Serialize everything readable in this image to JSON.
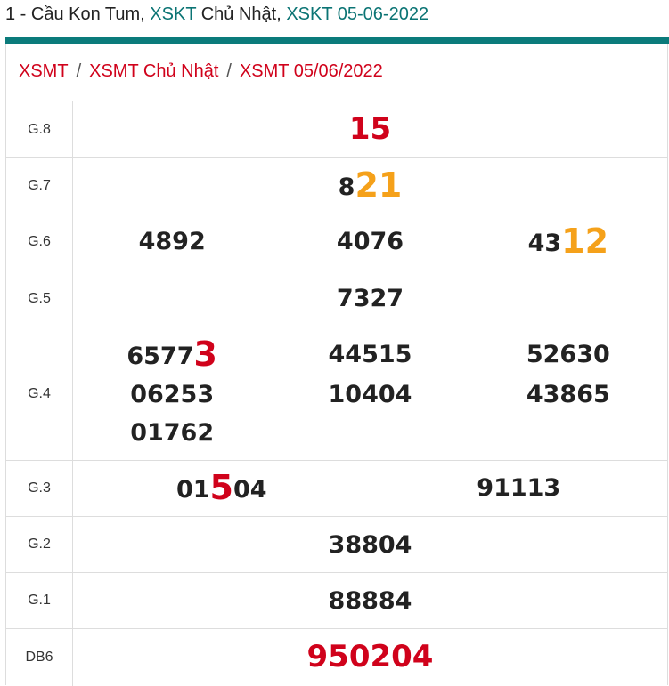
{
  "title": {
    "prefix": "1 - Cầu Kon Tum, ",
    "link1": "XSKT",
    "mid": " Chủ Nhật, ",
    "link2": "XSKT 05-06-2022"
  },
  "breadcrumb": [
    "XSMT",
    "XSMT Chủ Nhật",
    "XSMT 05/06/2022"
  ],
  "separator": "/",
  "colors": {
    "accent": "#0b7b7b",
    "red": "#d0021b",
    "orange": "#f5a11a"
  },
  "prizes": {
    "g8": {
      "label": "G.8",
      "value": "15"
    },
    "g7": {
      "label": "G.7",
      "pre": "8",
      "hl": "21"
    },
    "g6": {
      "label": "G.6",
      "v1": "4892",
      "v2": "4076",
      "v3pre": "43",
      "v3hl": "12"
    },
    "g5": {
      "label": "G.5",
      "value": "7327"
    },
    "g4": {
      "label": "G.4",
      "v1pre": "6577",
      "v1hl": "3",
      "v2": "44515",
      "v3": "52630",
      "v4": "06253",
      "v5": "10404",
      "v6": "43865",
      "v7": "01762"
    },
    "g3": {
      "label": "G.3",
      "v1pre": "01",
      "v1hl": "5",
      "v1post": "04",
      "v2": "91113"
    },
    "g2": {
      "label": "G.2",
      "value": "38804"
    },
    "g1": {
      "label": "G.1",
      "value": "88884"
    },
    "db": {
      "label": "DB6",
      "value": "950204"
    }
  }
}
